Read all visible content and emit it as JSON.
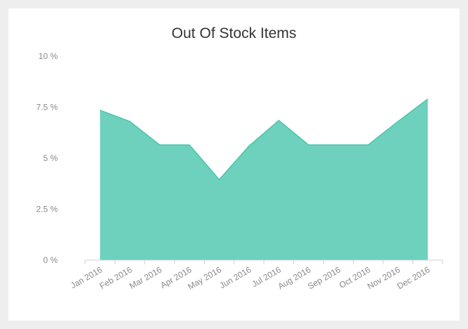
{
  "chart_data": {
    "type": "area",
    "title": "Out Of Stock Items",
    "xlabel": "",
    "ylabel": "",
    "categories": [
      "Jan 2016",
      "Feb 2016",
      "Mar 2016",
      "Apr 2016",
      "May 2016",
      "Jun 2016",
      "Jul 2016",
      "Aug 2016",
      "Sep 2016",
      "Oct 2016",
      "Nov 2016",
      "Dec 2016"
    ],
    "series": [
      {
        "values": [
          7.35,
          6.8,
          5.65,
          5.65,
          3.95,
          5.6,
          6.85,
          5.65,
          5.65,
          5.65,
          6.8,
          7.9
        ]
      }
    ],
    "yticks": [
      0,
      2.5,
      5,
      7.5,
      10
    ],
    "ytick_labels": [
      "0 %",
      "2.5 %",
      "5 %",
      "7.5 %",
      "10 %"
    ],
    "ylim": [
      0,
      10
    ],
    "grid": false,
    "legend": "none",
    "fill_color": "#6dd1bd",
    "line_color": "#4cc4ab"
  }
}
